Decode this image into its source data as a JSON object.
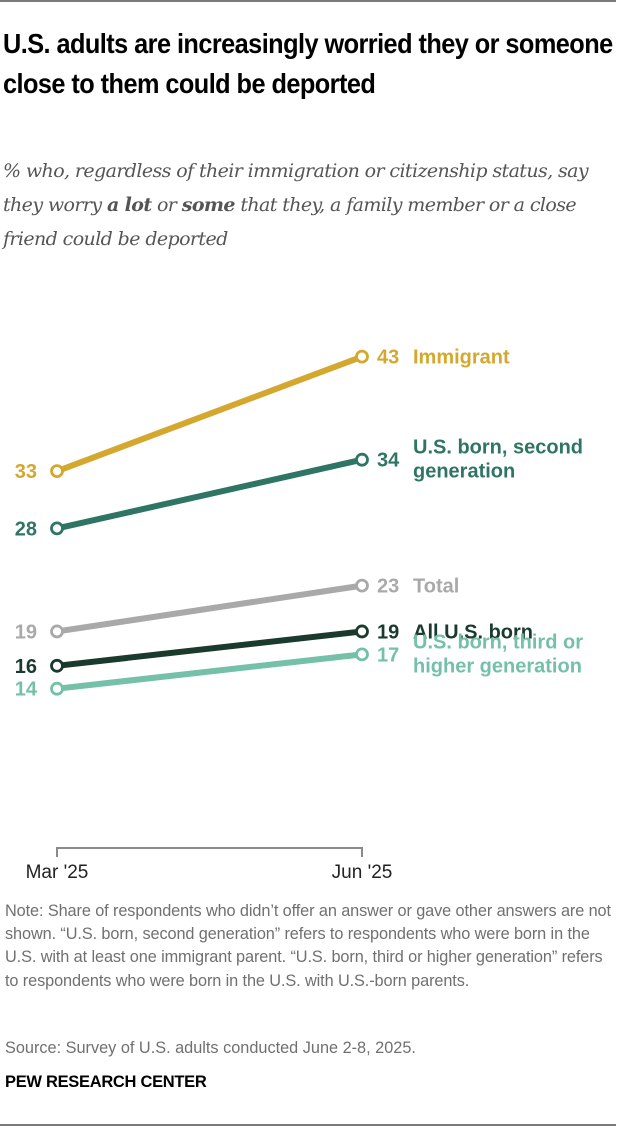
{
  "header": {
    "title": "U.S. adults are increasingly worried they or someone close to them could be deported",
    "subtitle_parts": [
      {
        "text": "% who, regardless of their immigration or citizenship status, say they worry ",
        "bold": false
      },
      {
        "text": "a lot",
        "bold": true
      },
      {
        "text": " or ",
        "bold": false
      },
      {
        "text": "some",
        "bold": true
      },
      {
        "text": " that they, a family member or a close friend could be deported",
        "bold": false
      }
    ]
  },
  "chart_data": {
    "type": "line",
    "title": "U.S. adults are increasingly worried they or someone close to them could be deported",
    "xlabel": "",
    "ylabel": "",
    "x": [
      "Mar '25",
      "Jun '25"
    ],
    "ylim": [
      0,
      45
    ],
    "grid": false,
    "legend": "direct-labels-right",
    "series": [
      {
        "name": "Immigrant",
        "values": [
          33,
          43
        ],
        "color": "#D4A82E",
        "label_lines": [
          "Immigrant"
        ]
      },
      {
        "name": "U.S. born, second generation",
        "values": [
          28,
          34
        ],
        "color": "#2F7565",
        "label_lines": [
          "U.S. born, second",
          "generation"
        ]
      },
      {
        "name": "Total",
        "values": [
          19,
          23
        ],
        "color": "#A9A9A9",
        "label_lines": [
          "Total"
        ]
      },
      {
        "name": "All U.S. born",
        "values": [
          16,
          19
        ],
        "color": "#1A3A2E",
        "label_lines": [
          "All U.S. born"
        ]
      },
      {
        "name": "U.S. born, third or higher generation",
        "values": [
          14,
          17
        ],
        "color": "#74C0A8",
        "label_lines": [
          "U.S. born, third or",
          "higher generation"
        ]
      }
    ]
  },
  "footer": {
    "note": "Note: Share of respondents who didn’t offer an answer or gave other answers are not shown. “U.S. born, second generation” refers to respondents who were born in the U.S. with at least one immigrant parent. “U.S. born, third or higher generation” refers to respondents who were born in the U.S. with U.S.-born parents.",
    "source": "Source: Survey of U.S. adults conducted June 2-8, 2025.",
    "brand": "PEW RESEARCH CENTER"
  }
}
